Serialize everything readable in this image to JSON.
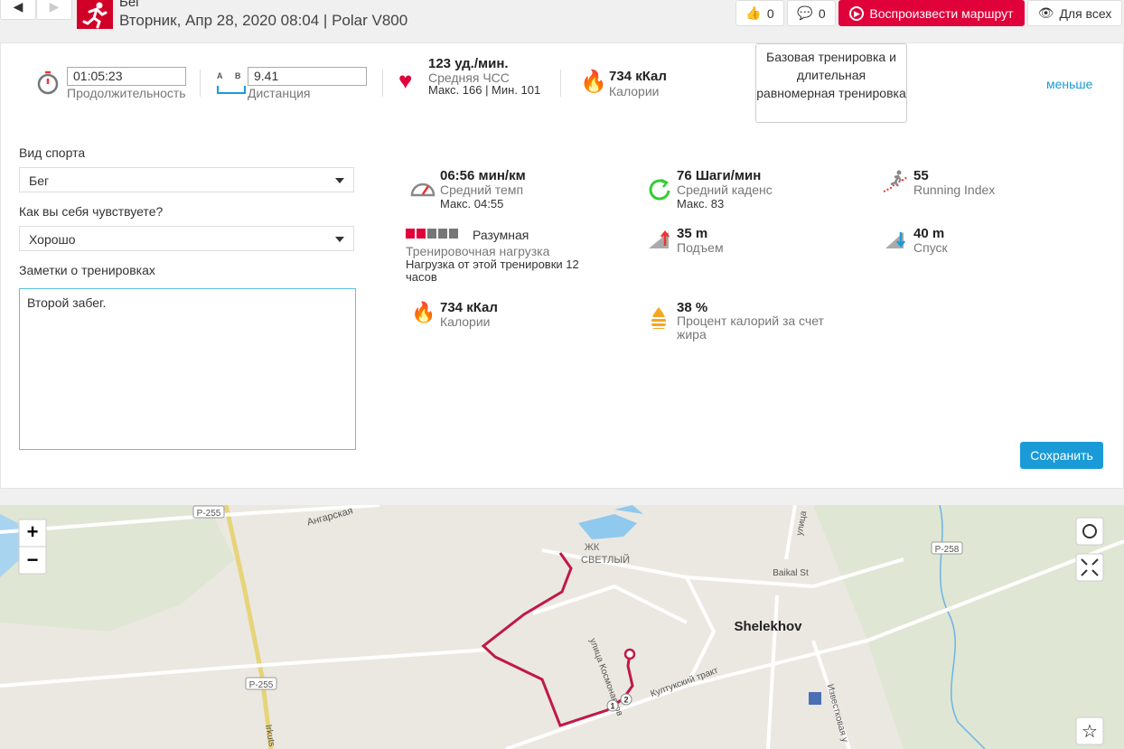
{
  "header": {
    "sport": "Бег",
    "subtitle": "Вторник, Апр 28, 2020 08:04 | Polar V800",
    "likes": "0",
    "comments": "0",
    "play_route": "Воспроизвести маршрут",
    "visibility": "Для всех"
  },
  "summary": {
    "duration": "01:05:23",
    "duration_label": "Продолжительность",
    "ab_a": "A",
    "ab_b": "B",
    "distance": "9.41",
    "distance_label": "Дистанция",
    "heart_rate": "123 уд./мин.",
    "heart_rate_label": "Средняя ЧСС",
    "heart_rate_detail": "Макс. 166  |  Мин. 101",
    "calories": "734 кКал",
    "calories_label": "Калории",
    "benefit": "Базовая тренировка и длительная равномерная тренировка",
    "less": "меньше"
  },
  "form": {
    "sport_label": "Вид спорта",
    "sport_value": "Бег",
    "feeling_label": "Как вы себя чувствуете?",
    "feeling_value": "Хорошо",
    "notes_label": "Заметки о тренировках",
    "notes_value": "Второй забег.",
    "save": "Сохранить"
  },
  "stats": {
    "pace": {
      "value": "06:56 мин/км",
      "label": "Средний темп",
      "detail": "Макс. 04:55"
    },
    "cadence": {
      "value": "76 Шаги/мин",
      "label": "Средний каденс",
      "detail": "Макс. 83"
    },
    "running_index": {
      "value": "55",
      "label": "Running Index"
    },
    "load": {
      "value": "Разумная",
      "label": "Тренировочная нагрузка",
      "detail": "Нагрузка от этой тренировки 12 часов"
    },
    "ascent": {
      "value": "35 m",
      "label": "Подъем"
    },
    "descent": {
      "value": "40 m",
      "label": "Спуск"
    },
    "calories": {
      "value": "734 кКал",
      "label": "Калории"
    },
    "fat": {
      "value": "38 %",
      "label": "Процент калорий за счет жира"
    }
  },
  "map": {
    "zoom_in": "+",
    "zoom_out": "−",
    "labels": [
      "Р-255",
      "Ангарская",
      "ЖК",
      "СВЕТЛЫЙ",
      "Baikal St",
      "Shelekhov",
      "Р-258",
      "Култукский тракт",
      "улица Космонавтов",
      "Известковая у",
      "Р-255",
      "Irkuts",
      "улица"
    ],
    "markers": [
      "1",
      "2"
    ]
  }
}
